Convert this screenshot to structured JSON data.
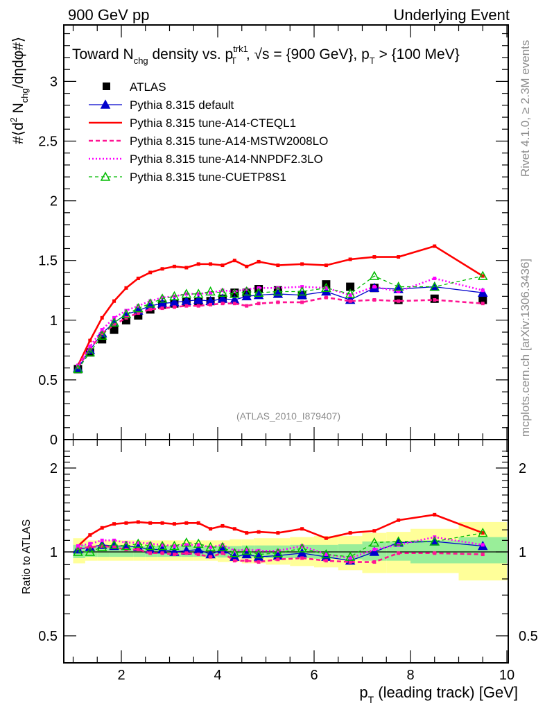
{
  "header": {
    "left": "900 GeV pp",
    "right": "Underlying Event"
  },
  "side_text": {
    "top": "Rivet 4.1.0, ≥ 2.3M events",
    "bottom": "mcplots.cern.ch [arXiv:1306.3436]"
  },
  "chart_data": [
    {
      "type": "line",
      "panel": "main",
      "title_parts": {
        "pre": "Toward N",
        "sub1": "chg",
        "mid": " density vs. p",
        "sup2": "trk1",
        "sub2": "T",
        "post": ", √s = {900 GeV}, p",
        "sub3": "T",
        "end": " > {100 MeV}"
      },
      "ylabel_parts": {
        "a": "#⟨d",
        "sup": "2",
        "b": " N",
        "sub": "chg",
        "c": "/dηdφ#⟩"
      },
      "watermark": "(ATLAS_2010_I879407)",
      "xlim": [
        0.8,
        10.05
      ],
      "ylim": [
        0,
        3.5
      ],
      "yticks": [
        "0",
        "0.5",
        "1",
        "1.5",
        "2",
        "2.5",
        "3"
      ],
      "ytick_values": [
        0,
        0.5,
        1,
        1.5,
        2,
        2.5,
        3
      ],
      "legend_position": "top-left",
      "x": [
        1.1,
        1.35,
        1.6,
        1.85,
        2.1,
        2.35,
        2.6,
        2.85,
        3.1,
        3.35,
        3.6,
        3.85,
        4.1,
        4.35,
        4.6,
        4.85,
        5.25,
        5.75,
        6.25,
        6.75,
        7.25,
        7.75,
        8.5,
        9.5
      ],
      "series": [
        {
          "name": "ATLAS",
          "color": "#000000",
          "style": "data",
          "values": [
            0.59,
            0.73,
            0.84,
            0.92,
            1.0,
            1.04,
            1.09,
            1.13,
            1.14,
            1.15,
            1.15,
            1.16,
            1.18,
            1.23,
            1.23,
            1.26,
            1.25,
            1.21,
            1.3,
            1.28,
            1.27,
            1.17,
            1.18,
            1.17
          ]
        },
        {
          "name": "Pythia 8.315 default",
          "color": "#0000cc",
          "style": "solid-triangle",
          "values": [
            0.6,
            0.75,
            0.89,
            0.98,
            1.05,
            1.08,
            1.12,
            1.14,
            1.15,
            1.16,
            1.17,
            1.16,
            1.18,
            1.17,
            1.2,
            1.21,
            1.22,
            1.21,
            1.24,
            1.17,
            1.27,
            1.26,
            1.28,
            1.23
          ]
        },
        {
          "name": "Pythia 8.315 tune-A14-CTEQL1",
          "color": "#ff0000",
          "style": "thick-solid",
          "values": [
            0.62,
            0.83,
            1.02,
            1.16,
            1.27,
            1.35,
            1.4,
            1.43,
            1.45,
            1.44,
            1.47,
            1.47,
            1.46,
            1.5,
            1.45,
            1.49,
            1.46,
            1.47,
            1.46,
            1.51,
            1.53,
            1.53,
            1.62,
            1.37
          ]
        },
        {
          "name": "Pythia 8.315 tune-A14-MSTW2008LO",
          "color": "#ff1493",
          "style": "dashed",
          "values": [
            0.61,
            0.76,
            0.89,
            0.96,
            1.02,
            1.06,
            1.09,
            1.1,
            1.11,
            1.12,
            1.12,
            1.13,
            1.14,
            1.14,
            1.12,
            1.14,
            1.15,
            1.15,
            1.19,
            1.16,
            1.17,
            1.16,
            1.17,
            1.14
          ]
        },
        {
          "name": "Pythia 8.315 tune-A14-NNPDF2.3LO",
          "color": "#ff00ff",
          "style": "dotted",
          "values": [
            0.62,
            0.78,
            0.92,
            1.02,
            1.08,
            1.12,
            1.16,
            1.19,
            1.2,
            1.22,
            1.22,
            1.23,
            1.25,
            1.24,
            1.26,
            1.27,
            1.27,
            1.28,
            1.27,
            1.21,
            1.28,
            1.24,
            1.35,
            1.25
          ]
        },
        {
          "name": "Pythia 8.315 tune-CUETP8S1",
          "color": "#00bb00",
          "style": "dashed-open-triangle",
          "values": [
            0.59,
            0.73,
            0.87,
            0.98,
            1.05,
            1.1,
            1.14,
            1.18,
            1.2,
            1.22,
            1.22,
            1.24,
            1.23,
            1.22,
            1.24,
            1.23,
            1.24,
            1.24,
            1.27,
            1.22,
            1.37,
            1.28,
            1.28,
            1.37
          ]
        }
      ]
    },
    {
      "type": "line",
      "panel": "ratio",
      "ylabel": "Ratio to ATLAS",
      "xlabel_parts": {
        "a": "p",
        "sub": "T",
        "b": " (leading track) [GeV]"
      },
      "xlim": [
        0.8,
        10.05
      ],
      "xticks": [
        "2",
        "4",
        "6",
        "8",
        "10"
      ],
      "xtick_values": [
        2,
        4,
        6,
        8,
        10
      ],
      "ylim": [
        0.42,
        2.35
      ],
      "yscale": "log",
      "yticks": [
        "0.5",
        "1",
        "2"
      ],
      "ytick_values": [
        0.5,
        1,
        2
      ],
      "x": [
        1.1,
        1.35,
        1.6,
        1.85,
        2.1,
        2.35,
        2.6,
        2.85,
        3.1,
        3.35,
        3.6,
        3.85,
        4.1,
        4.35,
        4.6,
        4.85,
        5.25,
        5.75,
        6.25,
        6.75,
        7.25,
        7.75,
        8.5,
        9.5
      ],
      "bin_edges": [
        1.0,
        1.25,
        1.5,
        1.75,
        2.0,
        2.25,
        2.5,
        2.75,
        3.0,
        3.25,
        3.5,
        3.75,
        4.0,
        4.25,
        4.5,
        4.75,
        5.0,
        5.5,
        6.0,
        6.5,
        7.0,
        7.5,
        8.0,
        9.0,
        10.0
      ],
      "band_1sigma": [
        [
          0.95,
          1.06
        ],
        [
          0.96,
          1.05
        ],
        [
          0.96,
          1.05
        ],
        [
          0.96,
          1.05
        ],
        [
          0.96,
          1.05
        ],
        [
          0.96,
          1.05
        ],
        [
          0.96,
          1.05
        ],
        [
          0.96,
          1.05
        ],
        [
          0.96,
          1.05
        ],
        [
          0.96,
          1.05
        ],
        [
          0.96,
          1.05
        ],
        [
          0.96,
          1.05
        ],
        [
          0.955,
          1.05
        ],
        [
          0.955,
          1.05
        ],
        [
          0.955,
          1.055
        ],
        [
          0.955,
          1.055
        ],
        [
          0.95,
          1.055
        ],
        [
          0.95,
          1.06
        ],
        [
          0.945,
          1.06
        ],
        [
          0.94,
          1.065
        ],
        [
          0.93,
          1.09
        ],
        [
          0.93,
          1.09
        ],
        [
          0.91,
          1.1
        ],
        [
          0.91,
          1.13
        ]
      ],
      "band_2sigma": [
        [
          0.91,
          1.12
        ],
        [
          0.93,
          1.1
        ],
        [
          0.93,
          1.1
        ],
        [
          0.93,
          1.1
        ],
        [
          0.93,
          1.1
        ],
        [
          0.93,
          1.1
        ],
        [
          0.93,
          1.1
        ],
        [
          0.93,
          1.1
        ],
        [
          0.93,
          1.1
        ],
        [
          0.93,
          1.1
        ],
        [
          0.93,
          1.1
        ],
        [
          0.93,
          1.1
        ],
        [
          0.92,
          1.1
        ],
        [
          0.92,
          1.11
        ],
        [
          0.91,
          1.11
        ],
        [
          0.91,
          1.12
        ],
        [
          0.9,
          1.12
        ],
        [
          0.89,
          1.13
        ],
        [
          0.88,
          1.14
        ],
        [
          0.86,
          1.14
        ],
        [
          0.84,
          1.17
        ],
        [
          0.84,
          1.18
        ],
        [
          0.84,
          1.21
        ],
        [
          0.79,
          1.28
        ]
      ],
      "series": [
        {
          "name": "Pythia 8.315 default",
          "color": "#0000cc",
          "values": [
            1.02,
            1.04,
            1.06,
            1.05,
            1.05,
            1.04,
            1.02,
            1.02,
            1.0,
            1.01,
            1.02,
            0.98,
            1.02,
            0.96,
            0.98,
            0.96,
            0.97,
            0.99,
            0.96,
            0.93,
            1.0,
            1.08,
            1.09,
            1.05
          ]
        },
        {
          "name": "Pythia 8.315 tune-A14-CTEQL1",
          "color": "#ff0000",
          "values": [
            1.05,
            1.15,
            1.22,
            1.26,
            1.27,
            1.28,
            1.27,
            1.27,
            1.26,
            1.27,
            1.27,
            1.21,
            1.24,
            1.21,
            1.17,
            1.18,
            1.17,
            1.21,
            1.12,
            1.17,
            1.19,
            1.3,
            1.36,
            1.17
          ]
        },
        {
          "name": "Pythia 8.315 tune-A14-MSTW2008LO",
          "color": "#ff1493",
          "values": [
            1.03,
            1.04,
            1.05,
            1.04,
            1.02,
            1.02,
            0.99,
            0.99,
            0.98,
            0.99,
            0.98,
            0.96,
            0.99,
            0.93,
            0.93,
            0.92,
            0.94,
            0.95,
            0.93,
            0.92,
            0.92,
            0.99,
            0.99,
            0.98
          ]
        },
        {
          "name": "Pythia 8.315 tune-A14-NNPDF2.3LO",
          "color": "#ff00ff",
          "values": [
            1.05,
            1.07,
            1.1,
            1.1,
            1.08,
            1.08,
            1.07,
            1.06,
            1.05,
            1.06,
            1.06,
            1.04,
            1.06,
            1.01,
            1.02,
            1.01,
            1.01,
            1.05,
            0.98,
            0.95,
            1.02,
            1.06,
            1.13,
            1.06
          ]
        },
        {
          "name": "Pythia 8.315 tune-CUETP8S1",
          "color": "#00bb00",
          "values": [
            1.0,
            1.0,
            1.04,
            1.06,
            1.05,
            1.07,
            1.05,
            1.05,
            1.05,
            1.08,
            1.07,
            1.04,
            1.04,
            0.99,
            1.01,
            0.98,
            0.99,
            1.03,
            0.98,
            0.96,
            1.08,
            1.09,
            1.09,
            1.17
          ]
        }
      ]
    }
  ]
}
